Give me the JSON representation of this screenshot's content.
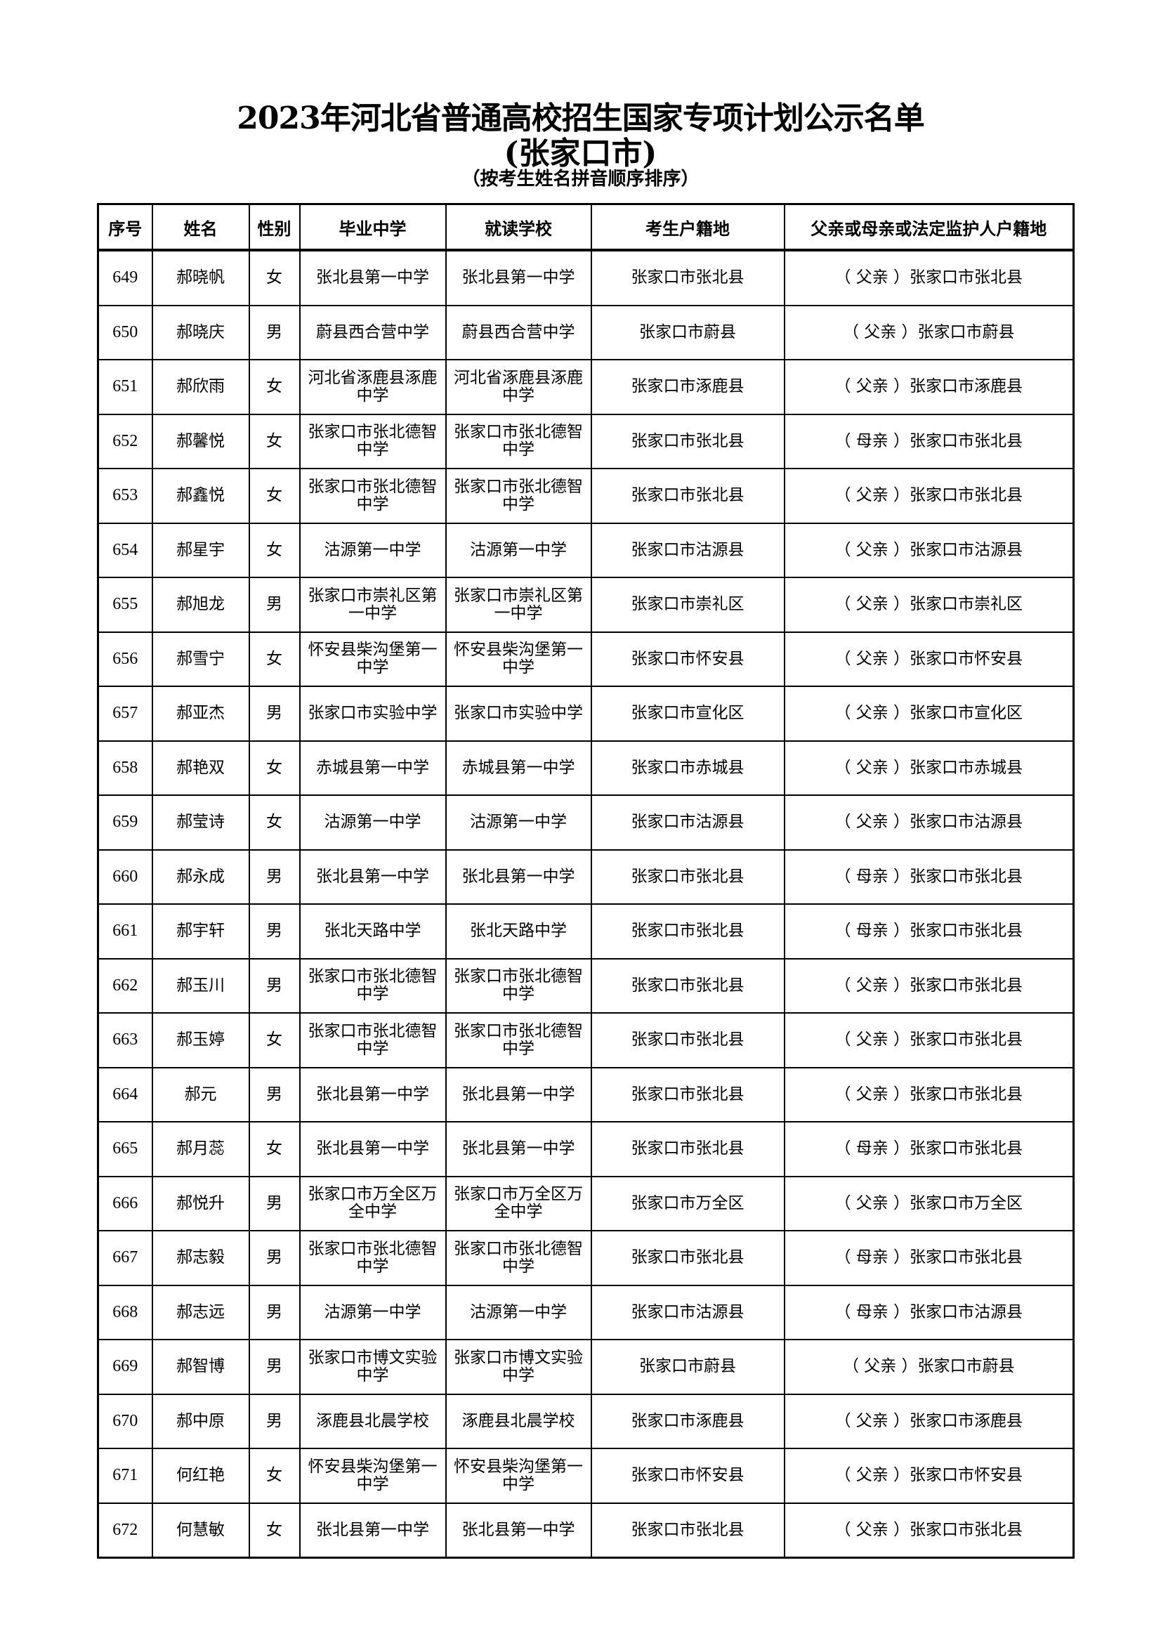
{
  "title": "2023年河北省普通高校招生国家专项计划公示名单",
  "subtitle": "(张家口市)",
  "note": "（按考生姓名拼音顺序排序）",
  "columns": [
    "序号",
    "姓名",
    "性别",
    "毕业中学",
    "就读学校",
    "考生户籍地",
    "父亲或母亲或法定监护人户籍地"
  ],
  "rows": [
    [
      "649",
      "郝晓帆",
      "女",
      "张北县第一中学",
      "张北县第一中学",
      "张家口市张北县",
      "（ 父亲 ）张家口市张北县"
    ],
    [
      "650",
      "郝晓庆",
      "男",
      "蔚县西合营中学",
      "蔚县西合营中学",
      "张家口市蔚县",
      "（ 父亲 ）张家口市蔚县"
    ],
    [
      "651",
      "郝欣雨",
      "女",
      "河北省涿鹿县涿鹿中学",
      "河北省涿鹿县涿鹿中学",
      "张家口市涿鹿县",
      "（ 父亲 ）张家口市涿鹿县"
    ],
    [
      "652",
      "郝馨悦",
      "女",
      "张家口市张北德智中学",
      "张家口市张北德智中学",
      "张家口市张北县",
      "（ 母亲 ）张家口市张北县"
    ],
    [
      "653",
      "郝鑫悦",
      "女",
      "张家口市张北德智中学",
      "张家口市张北德智中学",
      "张家口市张北县",
      "（ 父亲 ）张家口市张北县"
    ],
    [
      "654",
      "郝星宇",
      "女",
      "沽源第一中学",
      "沽源第一中学",
      "张家口市沽源县",
      "（ 父亲 ）张家口市沽源县"
    ],
    [
      "655",
      "郝旭龙",
      "男",
      "张家口市崇礼区第一中学",
      "张家口市崇礼区第一中学",
      "张家口市崇礼区",
      "（ 父亲 ）张家口市崇礼区"
    ],
    [
      "656",
      "郝雪宁",
      "女",
      "怀安县柴沟堡第一中学",
      "怀安县柴沟堡第一中学",
      "张家口市怀安县",
      "（ 父亲 ）张家口市怀安县"
    ],
    [
      "657",
      "郝亚杰",
      "男",
      "张家口市实验中学",
      "张家口市实验中学",
      "张家口市宣化区",
      "（ 父亲 ）张家口市宣化区"
    ],
    [
      "658",
      "郝艳双",
      "女",
      "赤城县第一中学",
      "赤城县第一中学",
      "张家口市赤城县",
      "（ 父亲 ）张家口市赤城县"
    ],
    [
      "659",
      "郝莹诗",
      "女",
      "沽源第一中学",
      "沽源第一中学",
      "张家口市沽源县",
      "（ 父亲 ）张家口市沽源县"
    ],
    [
      "660",
      "郝永成",
      "男",
      "张北县第一中学",
      "张北县第一中学",
      "张家口市张北县",
      "（ 母亲 ）张家口市张北县"
    ],
    [
      "661",
      "郝宇轩",
      "男",
      "张北天路中学",
      "张北天路中学",
      "张家口市张北县",
      "（ 母亲 ）张家口市张北县"
    ],
    [
      "662",
      "郝玉川",
      "男",
      "张家口市张北德智中学",
      "张家口市张北德智中学",
      "张家口市张北县",
      "（ 父亲 ）张家口市张北县"
    ],
    [
      "663",
      "郝玉婷",
      "女",
      "张家口市张北德智中学",
      "张家口市张北德智中学",
      "张家口市张北县",
      "（ 父亲 ）张家口市张北县"
    ],
    [
      "664",
      "郝元",
      "男",
      "张北县第一中学",
      "张北县第一中学",
      "张家口市张北县",
      "（ 父亲 ）张家口市张北县"
    ],
    [
      "665",
      "郝月蕊",
      "女",
      "张北县第一中学",
      "张北县第一中学",
      "张家口市张北县",
      "（ 母亲 ）张家口市张北县"
    ],
    [
      "666",
      "郝悦升",
      "男",
      "张家口市万全区万全中学",
      "张家口市万全区万全中学",
      "张家口市万全区",
      "（ 父亲 ）张家口市万全区"
    ],
    [
      "667",
      "郝志毅",
      "男",
      "张家口市张北德智中学",
      "张家口市张北德智中学",
      "张家口市张北县",
      "（ 母亲 ）张家口市张北县"
    ],
    [
      "668",
      "郝志远",
      "男",
      "沽源第一中学",
      "沽源第一中学",
      "张家口市沽源县",
      "（ 母亲 ）张家口市沽源县"
    ],
    [
      "669",
      "郝智博",
      "男",
      "张家口市博文实验中学",
      "张家口市博文实验中学",
      "张家口市蔚县",
      "（ 父亲 ）张家口市蔚县"
    ],
    [
      "670",
      "郝中原",
      "男",
      "涿鹿县北晨学校",
      "涿鹿县北晨学校",
      "张家口市涿鹿县",
      "（ 父亲 ）张家口市涿鹿县"
    ],
    [
      "671",
      "何红艳",
      "女",
      "怀安县柴沟堡第一中学",
      "怀安县柴沟堡第一中学",
      "张家口市怀安县",
      "（ 父亲 ）张家口市怀安县"
    ],
    [
      "672",
      "何慧敏",
      "女",
      "张北县第一中学",
      "张北县第一中学",
      "张家口市张北县",
      "（ 父亲 ）张家口市张北县"
    ]
  ]
}
